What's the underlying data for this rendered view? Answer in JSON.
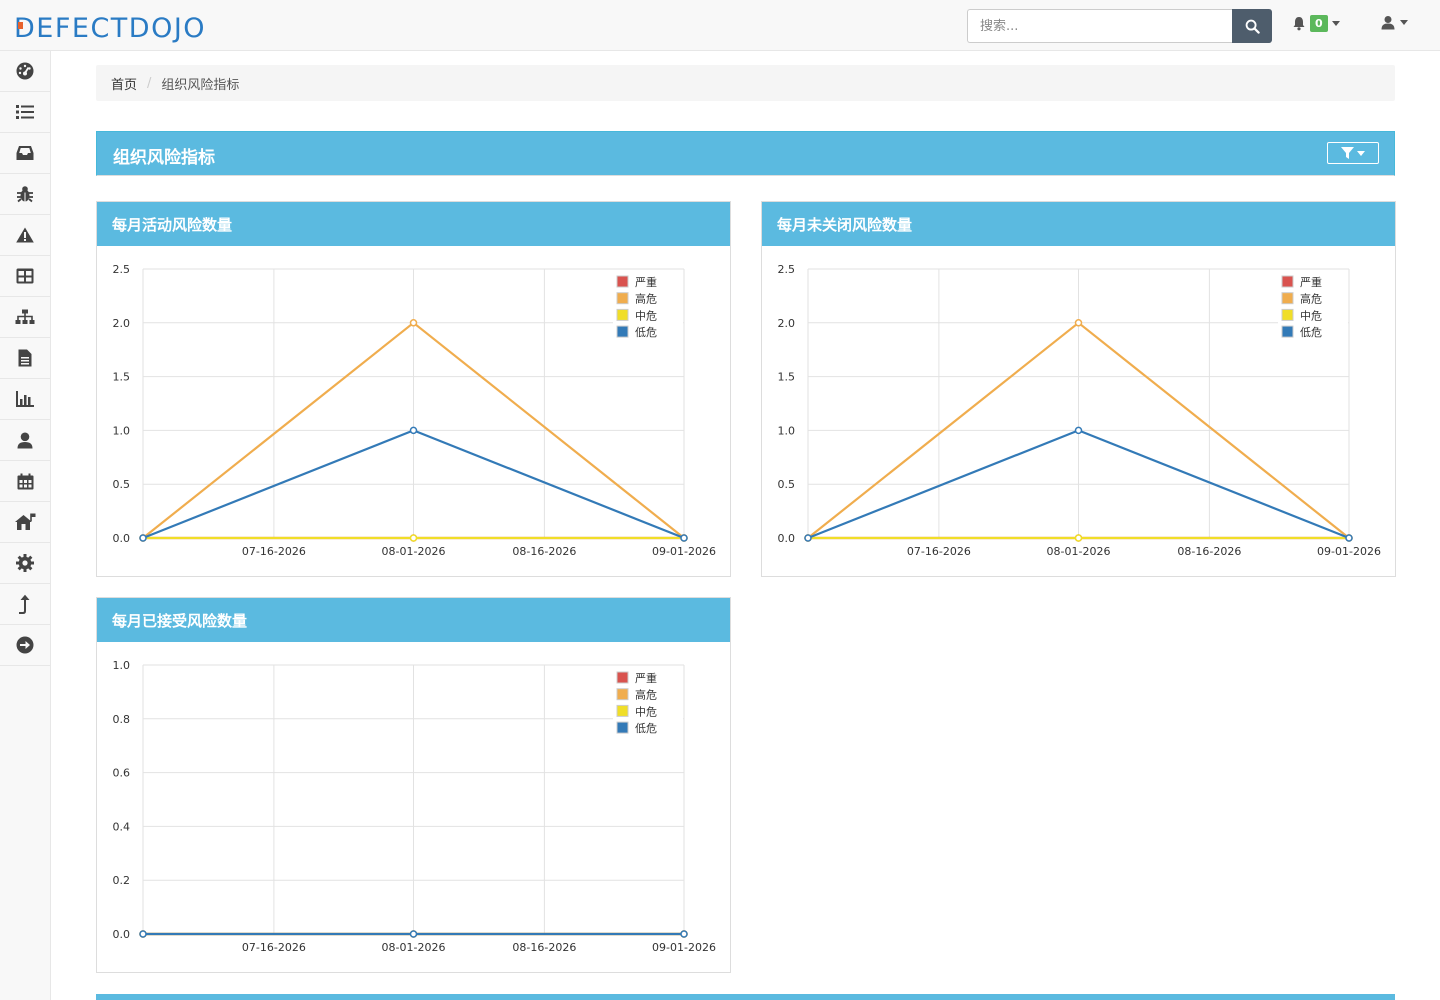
{
  "app": {
    "logo_text": "DEFECTDOJO"
  },
  "header": {
    "search_placeholder": "搜索...",
    "notification_count": "0",
    "icons": [
      "search-icon",
      "bell-icon",
      "user-icon"
    ]
  },
  "sidebar": {
    "items": [
      {
        "icon": "dashboard-icon"
      },
      {
        "icon": "list-icon"
      },
      {
        "icon": "inbox-icon"
      },
      {
        "icon": "bug-icon"
      },
      {
        "icon": "warning-icon"
      },
      {
        "icon": "table-icon"
      },
      {
        "icon": "sitemap-icon"
      },
      {
        "icon": "file-icon"
      },
      {
        "icon": "bar-chart-icon"
      },
      {
        "icon": "user-icon"
      },
      {
        "icon": "calendar-icon"
      },
      {
        "icon": "home-flag-icon"
      },
      {
        "icon": "gear-icon"
      },
      {
        "icon": "level-up-icon"
      },
      {
        "icon": "arrow-circle-right-icon"
      }
    ]
  },
  "breadcrumb": {
    "home": "首页",
    "current": "组织风险指标"
  },
  "main": {
    "title": "组织风险指标"
  },
  "colors": {
    "critical": "#d9534f",
    "high": "#f0ad4e",
    "medium": "#f0de28",
    "low": "#337ab7",
    "panel": "#5bbae0"
  },
  "chart_data": [
    {
      "type": "line",
      "title": "每月活动风险数量",
      "x": [
        "07-01-2026",
        "08-01-2026",
        "09-01-2026"
      ],
      "x_ticks": [
        "07-16-2026",
        "08-01-2026",
        "08-16-2026",
        "09-01-2026"
      ],
      "ylim": [
        0,
        2.5
      ],
      "y_ticks": [
        "0.0",
        "0.5",
        "1.0",
        "1.5",
        "2.0",
        "2.5"
      ],
      "legend": [
        "严重",
        "高危",
        "中危",
        "低危"
      ],
      "legend_position": "top-right",
      "series": [
        {
          "name": "严重",
          "values": [
            0,
            0,
            0
          ]
        },
        {
          "name": "高危",
          "values": [
            0,
            2,
            0
          ]
        },
        {
          "name": "中危",
          "values": [
            0,
            0,
            0
          ]
        },
        {
          "name": "低危",
          "values": [
            0,
            1,
            0
          ]
        }
      ]
    },
    {
      "type": "line",
      "title": "每月未关闭风险数量",
      "x": [
        "07-01-2026",
        "08-01-2026",
        "09-01-2026"
      ],
      "x_ticks": [
        "07-16-2026",
        "08-01-2026",
        "08-16-2026",
        "09-01-2026"
      ],
      "ylim": [
        0,
        2.5
      ],
      "y_ticks": [
        "0.0",
        "0.5",
        "1.0",
        "1.5",
        "2.0",
        "2.5"
      ],
      "legend": [
        "严重",
        "高危",
        "中危",
        "低危"
      ],
      "legend_position": "top-right",
      "series": [
        {
          "name": "严重",
          "values": [
            0,
            0,
            0
          ]
        },
        {
          "name": "高危",
          "values": [
            0,
            2,
            0
          ]
        },
        {
          "name": "中危",
          "values": [
            0,
            0,
            0
          ]
        },
        {
          "name": "低危",
          "values": [
            0,
            1,
            0
          ]
        }
      ]
    },
    {
      "type": "line",
      "title": "每月已接受风险数量",
      "x": [
        "07-01-2026",
        "08-01-2026",
        "09-01-2026"
      ],
      "x_ticks": [
        "07-16-2026",
        "08-01-2026",
        "08-16-2026",
        "09-01-2026"
      ],
      "ylim": [
        0,
        1.0
      ],
      "y_ticks": [
        "0.0",
        "0.2",
        "0.4",
        "0.6",
        "0.8",
        "1.0"
      ],
      "legend": [
        "严重",
        "高危",
        "中危",
        "低危"
      ],
      "legend_position": "top-right",
      "series": [
        {
          "name": "严重",
          "values": [
            0,
            0,
            0
          ]
        },
        {
          "name": "高危",
          "values": [
            0,
            0,
            0
          ]
        },
        {
          "name": "中危",
          "values": [
            0,
            0,
            0
          ]
        },
        {
          "name": "低危",
          "values": [
            0,
            0,
            0
          ]
        }
      ]
    }
  ]
}
